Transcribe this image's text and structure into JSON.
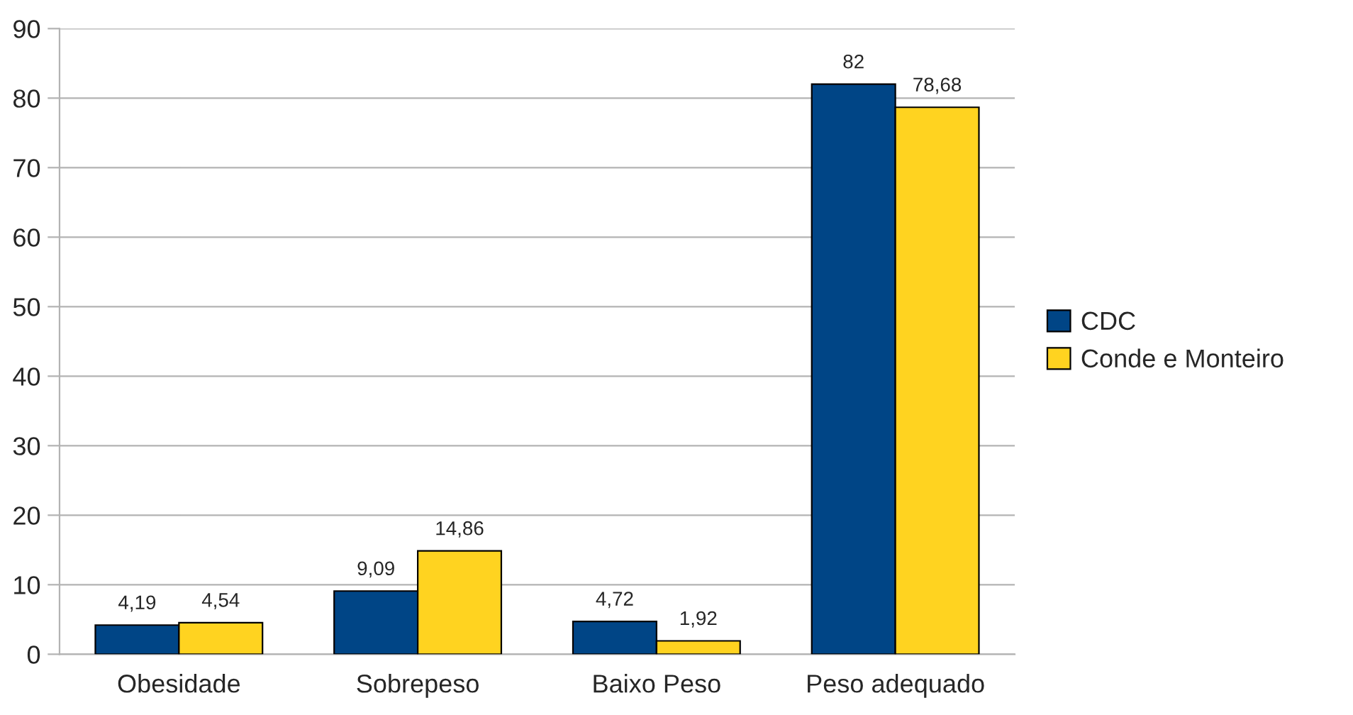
{
  "chart_data": {
    "type": "bar",
    "categories": [
      "Obesidade",
      "Sobrepeso",
      "Baixo Peso",
      "Peso adequado"
    ],
    "series": [
      {
        "name": "CDC",
        "color": "#004586",
        "values": [
          4.19,
          9.09,
          4.72,
          82
        ],
        "value_labels": [
          "4,19",
          "9,09",
          "4,72",
          "82"
        ]
      },
      {
        "name": "Conde e Monteiro",
        "color": "#ffd320",
        "values": [
          4.54,
          14.86,
          1.92,
          78.68
        ],
        "value_labels": [
          "4,54",
          "14,86",
          "1,92",
          "78,68"
        ]
      }
    ],
    "ylim": [
      0,
      90
    ],
    "yticks": [
      0,
      10,
      20,
      30,
      40,
      50,
      60,
      70,
      80,
      90
    ],
    "grid": "y",
    "legend": "right"
  }
}
